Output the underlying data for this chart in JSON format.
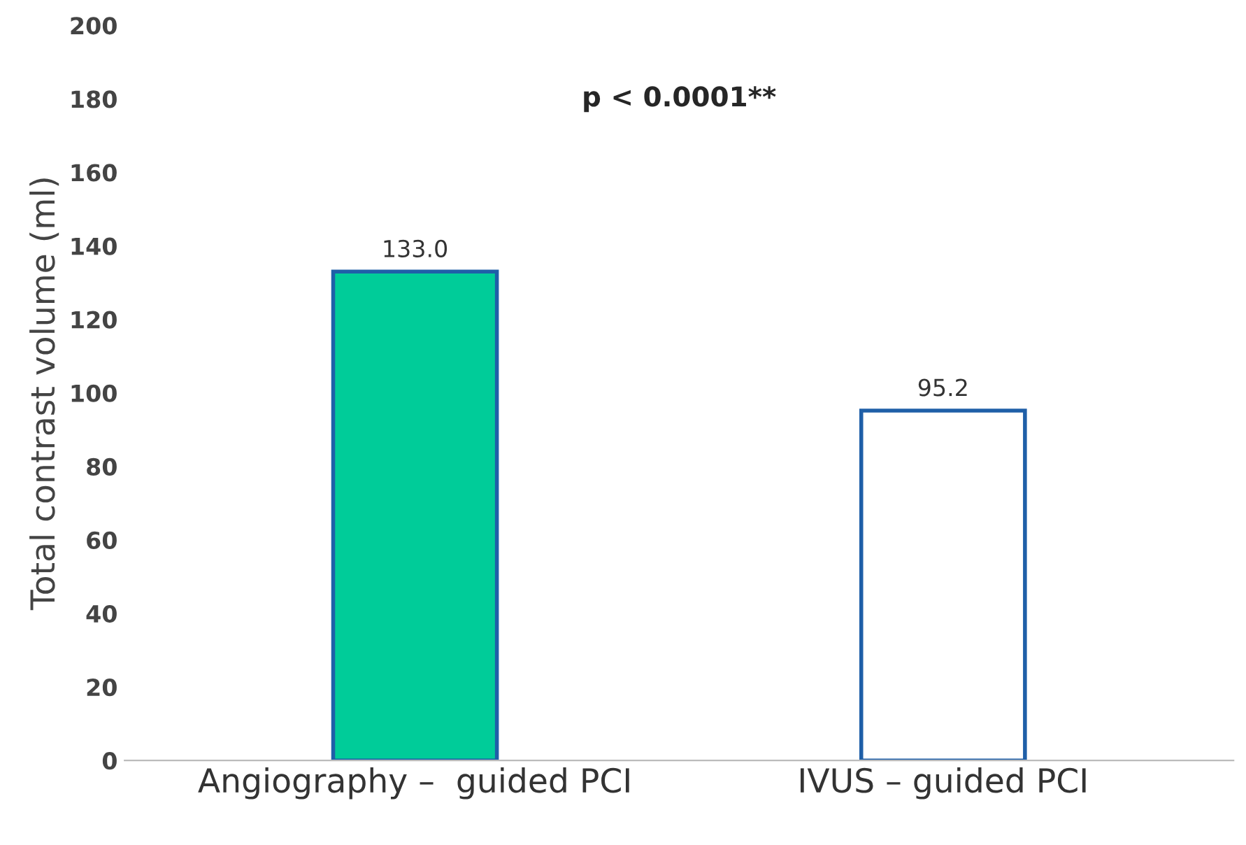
{
  "chart_data": {
    "type": "bar",
    "ylabel": "Total contrast volume (ml)",
    "categories": [
      "Angiography –  guided PCI",
      "IVUS – guided PCI"
    ],
    "values": [
      133.0,
      95.2
    ],
    "colors": [
      "#00cc99",
      "#ffffff"
    ],
    "value_labels": [
      "133.0",
      "95.2"
    ],
    "ylim": [
      0,
      200
    ],
    "yticks": [
      0,
      20,
      40,
      60,
      80,
      100,
      120,
      140,
      160,
      180,
      200
    ],
    "annotations": [
      "p < 0.0001**"
    ],
    "grid": false,
    "legend": false
  }
}
